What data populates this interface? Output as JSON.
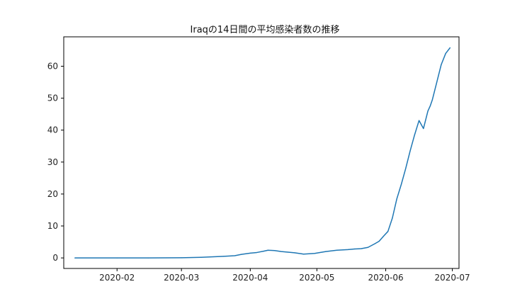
{
  "chart_data": {
    "type": "line",
    "title": "Iraqの14日間の平均感染者数の推移",
    "xlabel": "",
    "ylabel": "",
    "x_ticks": [
      "2020-02",
      "2020-03",
      "2020-04",
      "2020-05",
      "2020-06",
      "2020-07"
    ],
    "y_ticks": [
      "0",
      "10",
      "20",
      "30",
      "40",
      "50",
      "60"
    ],
    "xlim": [
      "2020-01-08",
      "2020-07-04"
    ],
    "ylim": [
      -3.3,
      69.2
    ],
    "grid": false,
    "legend": "none",
    "colors": {
      "line": "#1f77b4",
      "axes": "#000000"
    },
    "series": [
      {
        "x": [
          "2020-01-13",
          "2020-02-01",
          "2020-02-15",
          "2020-03-01",
          "2020-03-10",
          "2020-03-20",
          "2020-03-25",
          "2020-03-28",
          "2020-04-01",
          "2020-04-04",
          "2020-04-07",
          "2020-04-09",
          "2020-04-12",
          "2020-04-15",
          "2020-04-18",
          "2020-04-21",
          "2020-04-24",
          "2020-04-25",
          "2020-04-30",
          "2020-05-05",
          "2020-05-10",
          "2020-05-15",
          "2020-05-18",
          "2020-05-21",
          "2020-05-24",
          "2020-05-27",
          "2020-05-29",
          "2020-05-31",
          "2020-06-02",
          "2020-06-04",
          "2020-06-06",
          "2020-06-08",
          "2020-06-10",
          "2020-06-12",
          "2020-06-14",
          "2020-06-16",
          "2020-06-18",
          "2020-06-20",
          "2020-06-21",
          "2020-06-22",
          "2020-06-24",
          "2020-06-26",
          "2020-06-28",
          "2020-06-30"
        ],
        "y": [
          0.0,
          0.0,
          0.0,
          0.05,
          0.2,
          0.5,
          0.7,
          1.1,
          1.5,
          1.7,
          2.1,
          2.4,
          2.3,
          2.0,
          1.8,
          1.6,
          1.3,
          1.2,
          1.4,
          2.0,
          2.4,
          2.6,
          2.8,
          2.9,
          3.3,
          4.4,
          5.2,
          6.8,
          8.3,
          12.5,
          18.5,
          23.0,
          28.0,
          33.5,
          38.5,
          43.0,
          40.5,
          46.0,
          47.5,
          49.5,
          55.0,
          60.5,
          64.0,
          65.8
        ]
      }
    ]
  }
}
